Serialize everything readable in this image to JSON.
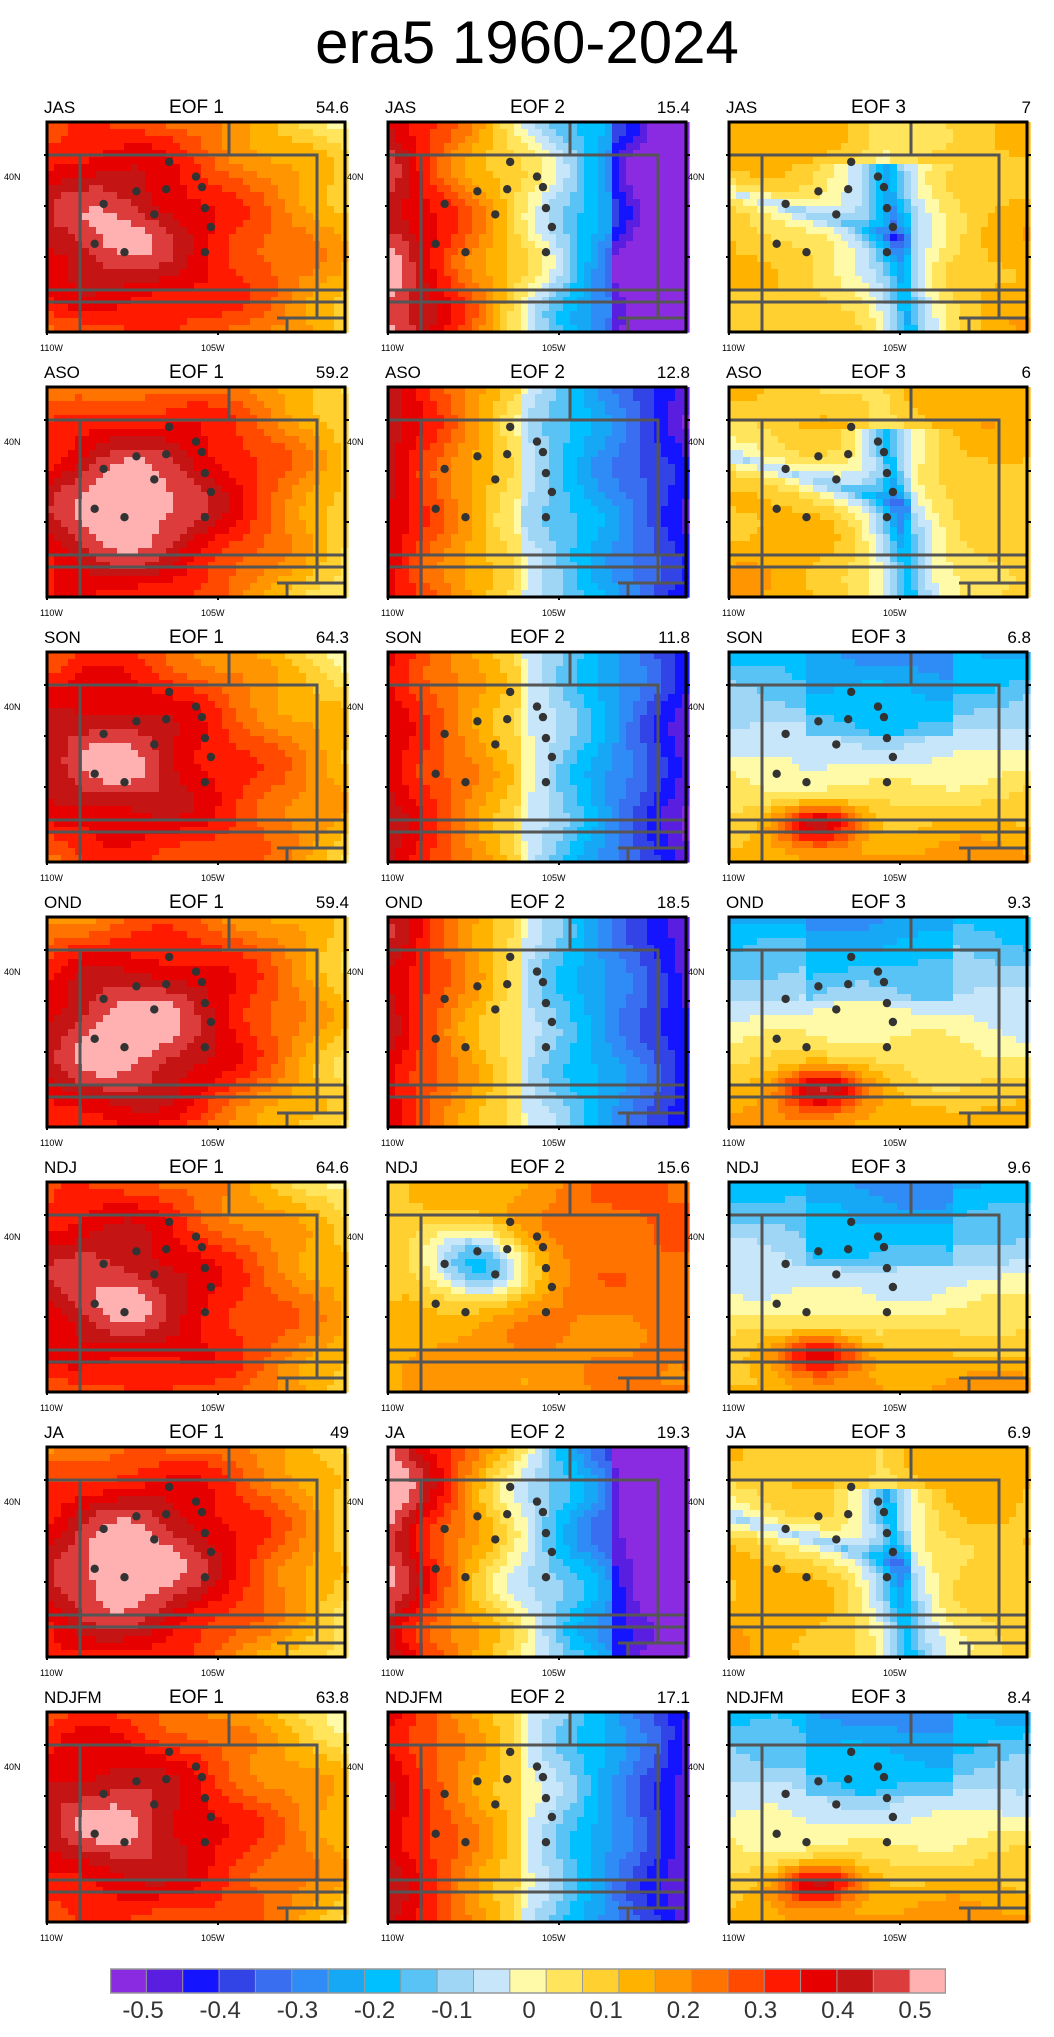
{
  "title": "era5 1960-2024",
  "axis_labels": {
    "lat": "40N",
    "lon_left": "110W",
    "lon_mid": "105W"
  },
  "panels": [
    {
      "season": "JAS",
      "eof": "EOF 1",
      "pct": "54.6",
      "pattern": "eof1"
    },
    {
      "season": "JAS",
      "eof": "EOF 2",
      "pct": "15.4",
      "pattern": "eof2strong"
    },
    {
      "season": "JAS",
      "eof": "EOF 3",
      "pct": "7",
      "pattern": "eof3tree"
    },
    {
      "season": "ASO",
      "eof": "EOF 1",
      "pct": "59.2",
      "pattern": "eof1"
    },
    {
      "season": "ASO",
      "eof": "EOF 2",
      "pct": "12.8",
      "pattern": "eof2"
    },
    {
      "season": "ASO",
      "eof": "EOF 3",
      "pct": "6",
      "pattern": "eof3tree"
    },
    {
      "season": "SON",
      "eof": "EOF 1",
      "pct": "64.3",
      "pattern": "eof1"
    },
    {
      "season": "SON",
      "eof": "EOF 2",
      "pct": "11.8",
      "pattern": "eof2"
    },
    {
      "season": "SON",
      "eof": "EOF 3",
      "pct": "6.8",
      "pattern": "eof3ns"
    },
    {
      "season": "OND",
      "eof": "EOF 1",
      "pct": "59.4",
      "pattern": "eof1"
    },
    {
      "season": "OND",
      "eof": "EOF 2",
      "pct": "18.5",
      "pattern": "eof2"
    },
    {
      "season": "OND",
      "eof": "EOF 3",
      "pct": "9.3",
      "pattern": "eof3ns"
    },
    {
      "season": "NDJ",
      "eof": "EOF 1",
      "pct": "64.6",
      "pattern": "eof1"
    },
    {
      "season": "NDJ",
      "eof": "EOF 2",
      "pct": "15.6",
      "pattern": "eof2rev"
    },
    {
      "season": "NDJ",
      "eof": "EOF 3",
      "pct": "9.6",
      "pattern": "eof3ns"
    },
    {
      "season": "JA",
      "eof": "EOF 1",
      "pct": "49",
      "pattern": "eof1"
    },
    {
      "season": "JA",
      "eof": "EOF 2",
      "pct": "19.3",
      "pattern": "eof2strong"
    },
    {
      "season": "JA",
      "eof": "EOF 3",
      "pct": "6.9",
      "pattern": "eof3tree"
    },
    {
      "season": "NDJFM",
      "eof": "EOF 1",
      "pct": "63.8",
      "pattern": "eof1"
    },
    {
      "season": "NDJFM",
      "eof": "EOF 2",
      "pct": "17.1",
      "pattern": "eof2"
    },
    {
      "season": "NDJFM",
      "eof": "EOF 3",
      "pct": "8.4",
      "pattern": "eof3ns"
    }
  ],
  "colorbar": {
    "labels": [
      "-0.5",
      "-0.4",
      "-0.3",
      "-0.2",
      "-0.1",
      "0",
      "0.1",
      "0.2",
      "0.3",
      "0.4",
      "0.5"
    ],
    "colors": [
      "#8a2be2",
      "#5a1ee0",
      "#1414ff",
      "#3244e6",
      "#3a6ef0",
      "#2f8cf7",
      "#16a8f5",
      "#00c0ff",
      "#59c3f5",
      "#a0d6f5",
      "#c8e6fa",
      "#fffaa8",
      "#ffe45c",
      "#ffd030",
      "#ffb300",
      "#ff9500",
      "#ff7300",
      "#ff4a00",
      "#ff1a00",
      "#e60000",
      "#c41414",
      "#dc3c3c",
      "#ffb0b0"
    ]
  },
  "chart_data": {
    "type": "heatmap",
    "title": "era5 1960-2024",
    "value_range": [
      -0.5,
      0.5
    ],
    "colorbar_ticks": [
      -0.5,
      -0.4,
      -0.3,
      -0.2,
      -0.1,
      0,
      0.1,
      0.2,
      0.3,
      0.4,
      0.5
    ],
    "panels": [
      {
        "season": "JAS",
        "eof": 1,
        "variance_pct": 54.6
      },
      {
        "season": "JAS",
        "eof": 2,
        "variance_pct": 15.4
      },
      {
        "season": "JAS",
        "eof": 3,
        "variance_pct": 7
      },
      {
        "season": "ASO",
        "eof": 1,
        "variance_pct": 59.2
      },
      {
        "season": "ASO",
        "eof": 2,
        "variance_pct": 12.8
      },
      {
        "season": "ASO",
        "eof": 3,
        "variance_pct": 6
      },
      {
        "season": "SON",
        "eof": 1,
        "variance_pct": 64.3
      },
      {
        "season": "SON",
        "eof": 2,
        "variance_pct": 11.8
      },
      {
        "season": "SON",
        "eof": 3,
        "variance_pct": 6.8
      },
      {
        "season": "OND",
        "eof": 1,
        "variance_pct": 59.4
      },
      {
        "season": "OND",
        "eof": 2,
        "variance_pct": 18.5
      },
      {
        "season": "OND",
        "eof": 3,
        "variance_pct": 9.3
      },
      {
        "season": "NDJ",
        "eof": 1,
        "variance_pct": 64.6
      },
      {
        "season": "NDJ",
        "eof": 2,
        "variance_pct": 15.6
      },
      {
        "season": "NDJ",
        "eof": 3,
        "variance_pct": 9.6
      },
      {
        "season": "JA",
        "eof": 1,
        "variance_pct": 49
      },
      {
        "season": "JA",
        "eof": 2,
        "variance_pct": 19.3
      },
      {
        "season": "JA",
        "eof": 3,
        "variance_pct": 6.9
      },
      {
        "season": "NDJFM",
        "eof": 1,
        "variance_pct": 63.8
      },
      {
        "season": "NDJFM",
        "eof": 2,
        "variance_pct": 17.1
      },
      {
        "season": "NDJFM",
        "eof": 3,
        "variance_pct": 8.4
      }
    ]
  }
}
